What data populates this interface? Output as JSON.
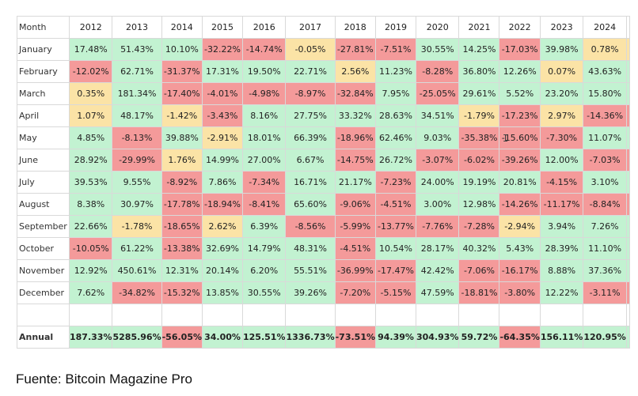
{
  "chart_data": {
    "type": "table",
    "header_label": "Month",
    "years": [
      "2012",
      "2013",
      "2014",
      "2015",
      "2016",
      "2017",
      "2018",
      "2019",
      "2020",
      "2021",
      "2022",
      "2023",
      "2024"
    ],
    "rows": [
      {
        "month": "January",
        "values": [
          "17.48%",
          "51.43%",
          "10.10%",
          "-32.22%",
          "-14.74%",
          "-0.05%",
          "-27.81%",
          "-7.51%",
          "30.55%",
          "14.25%",
          "-17.03%",
          "39.98%",
          "0.78%"
        ],
        "status": [
          "pos",
          "pos",
          "pos",
          "neg",
          "neg",
          "neu",
          "neg",
          "neg",
          "pos",
          "pos",
          "neg",
          "pos",
          "neu"
        ]
      },
      {
        "month": "February",
        "values": [
          "-12.02%",
          "62.71%",
          "-31.37%",
          "17.31%",
          "19.50%",
          "22.71%",
          "2.56%",
          "11.23%",
          "-8.28%",
          "36.80%",
          "12.26%",
          "0.07%",
          "43.63%"
        ],
        "status": [
          "neg",
          "pos",
          "neg",
          "pos",
          "pos",
          "pos",
          "neu",
          "pos",
          "neg",
          "pos",
          "pos",
          "neu",
          "pos"
        ]
      },
      {
        "month": "March",
        "values": [
          "0.35%",
          "181.34%",
          "-17.40%",
          "-4.01%",
          "-4.98%",
          "-8.97%",
          "-32.84%",
          "7.95%",
          "-25.05%",
          "29.61%",
          "5.52%",
          "23.20%",
          "15.80%"
        ],
        "status": [
          "neu",
          "pos",
          "neg",
          "neg",
          "neg",
          "neg",
          "neg",
          "pos",
          "neg",
          "pos",
          "pos",
          "pos",
          "pos"
        ]
      },
      {
        "month": "April",
        "values": [
          "1.07%",
          "48.17%",
          "-1.42%",
          "-3.43%",
          "8.16%",
          "27.75%",
          "33.32%",
          "28.63%",
          "34.51%",
          "-1.79%",
          "-17.23%",
          "2.97%",
          "-14.36%"
        ],
        "status": [
          "neu",
          "pos",
          "neu",
          "neg",
          "pos",
          "pos",
          "pos",
          "pos",
          "pos",
          "neu",
          "neg",
          "neu",
          "neg"
        ]
      },
      {
        "month": "May",
        "values": [
          "4.85%",
          "-8.13%",
          "39.88%",
          "-2.91%",
          "18.01%",
          "66.39%",
          "-18.96%",
          "62.46%",
          "9.03%",
          "-35.38%",
          "-15.60%",
          "-7.30%",
          "11.07%"
        ],
        "status": [
          "pos",
          "neg",
          "pos",
          "neu",
          "pos",
          "pos",
          "neg",
          "pos",
          "pos",
          "neg",
          "neg",
          "neg",
          "pos"
        ]
      },
      {
        "month": "June",
        "values": [
          "28.92%",
          "-29.99%",
          "1.76%",
          "14.99%",
          "27.00%",
          "6.67%",
          "-14.75%",
          "26.72%",
          "-3.07%",
          "-6.02%",
          "-39.26%",
          "12.00%",
          "-7.03%"
        ],
        "status": [
          "pos",
          "neg",
          "neu",
          "pos",
          "pos",
          "pos",
          "neg",
          "pos",
          "neg",
          "neg",
          "neg",
          "pos",
          "neg"
        ]
      },
      {
        "month": "July",
        "values": [
          "39.53%",
          "9.55%",
          "-8.92%",
          "7.86%",
          "-7.34%",
          "16.71%",
          "21.17%",
          "-7.23%",
          "24.00%",
          "19.19%",
          "20.81%",
          "-4.15%",
          "3.10%"
        ],
        "status": [
          "pos",
          "pos",
          "neg",
          "pos",
          "neg",
          "pos",
          "pos",
          "neg",
          "pos",
          "pos",
          "pos",
          "neg",
          "pos"
        ]
      },
      {
        "month": "August",
        "values": [
          "8.38%",
          "30.97%",
          "-17.78%",
          "-18.94%",
          "-8.41%",
          "65.60%",
          "-9.06%",
          "-4.51%",
          "3.00%",
          "12.98%",
          "-14.26%",
          "-11.17%",
          "-8.84%"
        ],
        "status": [
          "pos",
          "pos",
          "neg",
          "neg",
          "neg",
          "pos",
          "neg",
          "neg",
          "pos",
          "pos",
          "neg",
          "neg",
          "neg"
        ]
      },
      {
        "month": "September",
        "values": [
          "22.66%",
          "-1.78%",
          "-18.65%",
          "2.62%",
          "6.39%",
          "-8.56%",
          "-5.99%",
          "-13.77%",
          "-7.76%",
          "-7.28%",
          "-2.94%",
          "3.94%",
          "7.26%"
        ],
        "status": [
          "pos",
          "neu",
          "neg",
          "neu",
          "pos",
          "neg",
          "neg",
          "neg",
          "neg",
          "neg",
          "neu",
          "pos",
          "pos"
        ]
      },
      {
        "month": "October",
        "values": [
          "-10.05%",
          "61.22%",
          "-13.38%",
          "32.69%",
          "14.79%",
          "48.31%",
          "-4.51%",
          "10.54%",
          "28.17%",
          "40.32%",
          "5.43%",
          "28.39%",
          "11.10%"
        ],
        "status": [
          "neg",
          "pos",
          "neg",
          "pos",
          "pos",
          "pos",
          "neg",
          "pos",
          "pos",
          "pos",
          "pos",
          "pos",
          "pos"
        ]
      },
      {
        "month": "November",
        "values": [
          "12.92%",
          "450.61%",
          "12.31%",
          "20.14%",
          "6.20%",
          "55.51%",
          "-36.99%",
          "-17.47%",
          "42.42%",
          "-7.06%",
          "-16.17%",
          "8.88%",
          "37.36%"
        ],
        "status": [
          "pos",
          "pos",
          "pos",
          "pos",
          "pos",
          "pos",
          "neg",
          "neg",
          "pos",
          "neg",
          "neg",
          "pos",
          "pos"
        ]
      },
      {
        "month": "December",
        "values": [
          "7.62%",
          "-34.82%",
          "-15.32%",
          "13.85%",
          "30.55%",
          "39.26%",
          "-7.20%",
          "-5.15%",
          "47.59%",
          "-18.81%",
          "-3.80%",
          "12.22%",
          "-3.11%"
        ],
        "status": [
          "pos",
          "neg",
          "neg",
          "pos",
          "pos",
          "pos",
          "neg",
          "neg",
          "pos",
          "neg",
          "neg",
          "pos",
          "neg"
        ]
      }
    ],
    "annual": {
      "label": "Annual",
      "values": [
        "187.33%",
        "5285.96%",
        "-56.05%",
        "34.00%",
        "125.51%",
        "1336.73%",
        "-73.51%",
        "94.39%",
        "304.93%",
        "59.72%",
        "-64.35%",
        "156.11%",
        "120.95%"
      ],
      "status": [
        "pos",
        "pos",
        "neg",
        "pos",
        "pos",
        "pos",
        "neg",
        "pos",
        "pos",
        "pos",
        "neg",
        "pos",
        "pos"
      ]
    },
    "colors": {
      "pos": "#c2f2d1",
      "neg": "#f49a9a",
      "neu": "#fbe3a6"
    }
  },
  "source_text": "Fuente: Bitcoin Magazine Pro"
}
